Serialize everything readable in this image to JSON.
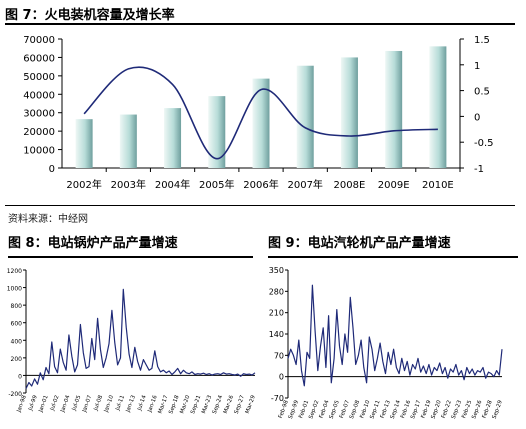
{
  "figure7": {
    "title": "图 7：火电装机容量及增长率",
    "source": "资料来源：中经网"
  },
  "figure8": {
    "title": "图 8：电站锅炉产品产量增速"
  },
  "figure9": {
    "title": "图 9：电站汽轮机产品产量增速"
  },
  "colors": {
    "bar_light": "#eef7f5",
    "bar_mid": "#b7dcd8",
    "bar_dark": "#6f9f9e",
    "line": "#1f2a78",
    "axis": "#000000"
  },
  "chart_data": [
    {
      "id": "fig7",
      "type": "bar",
      "categories": [
        "2002年",
        "2003年",
        "2004年",
        "2005年",
        "2006年",
        "2007年",
        "2008E",
        "2009E",
        "2010E"
      ],
      "series": [
        {
          "values": [
            26500,
            29000,
            32500,
            39000,
            48500,
            55500,
            60000,
            63500,
            66000
          ]
        },
        {
          "type": "line",
          "axis": "right",
          "values": [
            0.05,
            0.92,
            0.62,
            -0.82,
            0.52,
            -0.22,
            -0.38,
            -0.28,
            -0.25
          ]
        }
      ],
      "ylim": [
        0,
        70000
      ],
      "yticks": [
        0,
        10000,
        20000,
        30000,
        40000,
        50000,
        60000,
        70000
      ],
      "y2lim": [
        -1,
        1.5
      ],
      "y2ticks": [
        "-1",
        "-0.5",
        "0",
        "0.5",
        "1",
        "1.5"
      ],
      "y2tick_values": [
        -1,
        -0.5,
        0,
        0.5,
        1,
        1.5
      ],
      "grid": false
    },
    {
      "id": "fig8",
      "type": "line",
      "x_tick_labels": [
        "Jan-98",
        "Jul-99",
        "Jan-01",
        "Jul-02",
        "Jan-04",
        "Jul-05",
        "Jan-07",
        "Jul-08",
        "Jan-10",
        "Jul-11",
        "Jan-13",
        "Jul-14",
        "Jan-16",
        "Mar-17",
        "Sep-18",
        "Mar-20",
        "Sep-21",
        "Mar-23",
        "Sep-24",
        "Mar-26",
        "Sep-27",
        "Mar-29"
      ],
      "ylim": [
        -200,
        1200
      ],
      "yticks": [
        "-200",
        "0",
        "200",
        "400",
        "600",
        "800",
        "1000",
        "1200"
      ],
      "ytick_values": [
        -200,
        0,
        200,
        400,
        600,
        800,
        1000,
        1200
      ],
      "values": [
        -150,
        -80,
        -120,
        -40,
        -100,
        30,
        -50,
        90,
        20,
        380,
        100,
        30,
        300,
        150,
        60,
        460,
        220,
        40,
        120,
        580,
        260,
        80,
        100,
        420,
        180,
        650,
        300,
        90,
        200,
        360,
        740,
        380,
        120,
        200,
        980,
        550,
        240,
        90,
        320,
        160,
        60,
        180,
        120,
        60,
        80,
        280,
        100,
        40,
        60,
        30,
        50,
        10,
        40,
        80,
        20,
        60,
        30,
        20,
        40,
        10,
        20,
        15,
        25,
        10,
        20,
        5,
        15,
        20,
        10,
        30,
        15,
        20,
        10,
        5,
        15,
        -10,
        20,
        10,
        15,
        5,
        30
      ]
    },
    {
      "id": "fig9",
      "type": "line",
      "x_tick_labels": [
        "Feb-98",
        "Sep-99",
        "Feb-01",
        "Sep-02",
        "Feb-04",
        "Sep-05",
        "Feb-07",
        "Sep-08",
        "Feb-10",
        "Sep-11",
        "Feb-13",
        "Sep-14",
        "Feb-16",
        "Sep-17",
        "Feb-19",
        "Sep-20",
        "Feb-22",
        "Sep-23",
        "Feb-25",
        "Sep-26",
        "Feb-28",
        "Sep-29"
      ],
      "ylim": [
        -70,
        350
      ],
      "yticks": [
        "-70",
        "0",
        "70",
        "140",
        "210",
        "280",
        "350"
      ],
      "ytick_values": [
        -70,
        0,
        70,
        140,
        210,
        280,
        350
      ],
      "values": [
        60,
        90,
        70,
        40,
        120,
        20,
        -30,
        80,
        60,
        300,
        150,
        20,
        100,
        160,
        30,
        200,
        -20,
        60,
        220,
        100,
        40,
        140,
        80,
        260,
        160,
        40,
        70,
        120,
        30,
        -20,
        130,
        90,
        20,
        60,
        110,
        50,
        10,
        80,
        40,
        90,
        30,
        10,
        60,
        20,
        50,
        5,
        40,
        25,
        60,
        15,
        35,
        10,
        40,
        5,
        30,
        20,
        45,
        10,
        30,
        -5,
        25,
        15,
        40,
        5,
        20,
        -10,
        30,
        10,
        25,
        5,
        20,
        15,
        30,
        -5,
        15,
        10,
        0,
        20,
        5,
        90
      ]
    }
  ]
}
